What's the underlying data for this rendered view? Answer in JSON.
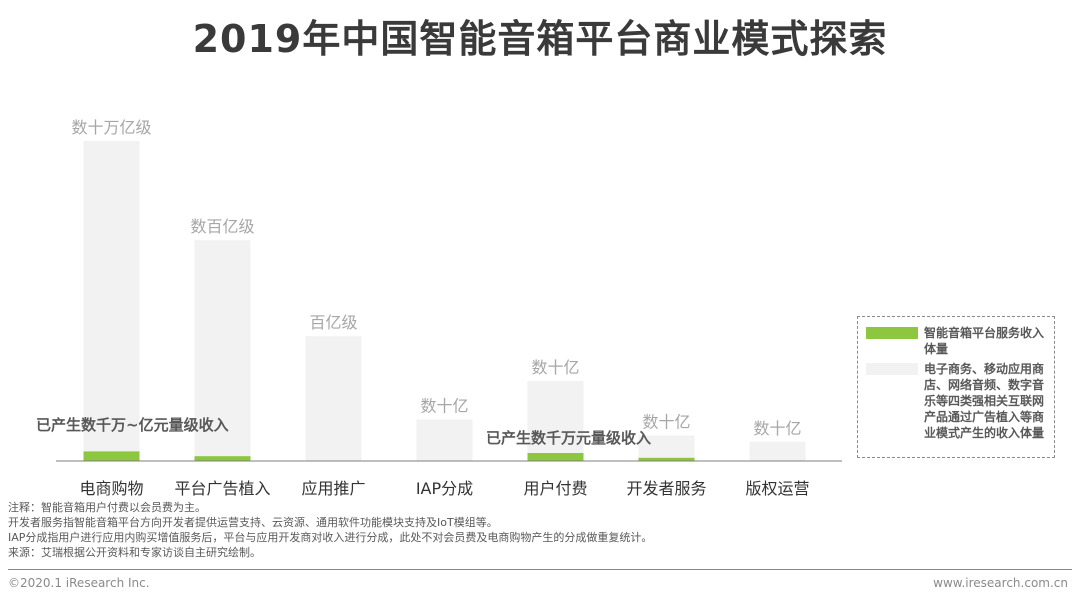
{
  "title": "2019年中国智能音箱平台商业模式探索",
  "chart_data": {
    "type": "bar",
    "categories": [
      "电商购物",
      "平台广告植入",
      "应用推广",
      "IAP分成",
      "用户付费",
      "开发者服务",
      "版权运营"
    ],
    "series": [
      {
        "name": "电子商务、移动应用商店、网络音频、数字音乐等四类强相关互联网产品通过广告植入等商业模式产生的收入体量",
        "values": [
          100,
          69,
          39,
          13,
          25,
          8,
          6
        ],
        "color": "#f2f2f2"
      },
      {
        "name": "智能音箱平台服务收入体量",
        "values": [
          3,
          1.5,
          0,
          0,
          2.5,
          1,
          0
        ],
        "color": "#8dc63f"
      }
    ],
    "value_labels": [
      "数十万亿级",
      "数百亿级",
      "百亿级",
      "数十亿",
      "数十亿",
      "数十亿",
      "数十亿"
    ],
    "annotations": [
      "已产生数千万~亿元量级收入",
      "已产生数千万元量级收入"
    ],
    "ylim": [
      0,
      100
    ],
    "legend_position": "right"
  },
  "legend": [
    {
      "label": "智能音箱平台服务收入体量",
      "color": "#8dc63f"
    },
    {
      "label": "电子商务、移动应用商店、网络音频、数字音乐等四类强相关互联网产品通过广告植入等商业模式产生的收入体量",
      "color": "#f2f2f2"
    }
  ],
  "notes": [
    "注释：智能音箱用户付费以会员费为主。",
    "开发者服务指智能音箱平台方向开发者提供运营支持、云资源、通用软件功能模块支持及IoT模组等。",
    "IAP分成指用户进行应用内购买增值服务后，平台与应用开发商对收入进行分成，此处不对会员费及电商购物产生的分成做重复统计。",
    "来源：艾瑞根据公开资料和专家访谈自主研究绘制。"
  ],
  "footer": {
    "copyright": "©2020.1 iResearch Inc.",
    "website": "www.iresearch.com.cn"
  }
}
